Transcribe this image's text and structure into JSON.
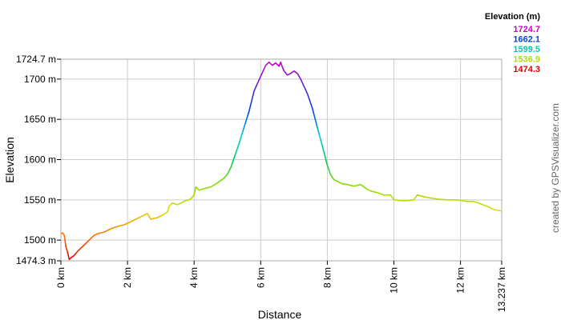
{
  "chart_data": {
    "type": "line",
    "xlabel": "Distance",
    "ylabel": "Elevation",
    "x_unit": "km",
    "y_unit": "m",
    "xlim": [
      0,
      13.237
    ],
    "ylim": [
      1474.3,
      1724.7
    ],
    "x_ticks": [
      "0 km",
      "2 km",
      "4 km",
      "6 km",
      "8 km",
      "10 km",
      "12 km",
      "13.237 km"
    ],
    "x_tick_values": [
      0,
      2,
      4,
      6,
      8,
      10,
      12,
      13.237
    ],
    "y_ticks": [
      "1474.3 m",
      "1500 m",
      "1550 m",
      "1600 m",
      "1650 m",
      "1700 m",
      "1724.7 m"
    ],
    "y_tick_values": [
      1474.3,
      1500,
      1550,
      1600,
      1650,
      1700,
      1724.7
    ],
    "grid": true,
    "legend": {
      "title": "Elevation (m)",
      "position": "top-right",
      "entries": [
        {
          "label": "1724.7",
          "color": "#cc00cc"
        },
        {
          "label": "1662.1",
          "color": "#0044dd"
        },
        {
          "label": "1599.5",
          "color": "#00ccaa"
        },
        {
          "label": "1536.9",
          "color": "#aadd00"
        },
        {
          "label": "1474.3",
          "color": "#dd0000"
        }
      ]
    },
    "credit": "created by GPSVisualizer.com",
    "series": [
      {
        "x": [
          0,
          0.05,
          0.1,
          0.15,
          0.2,
          0.25,
          0.3,
          0.4,
          0.5,
          0.6,
          0.7,
          0.8,
          0.9,
          1.0,
          1.1,
          1.3,
          1.5,
          1.7,
          1.9,
          2.1,
          2.3,
          2.5,
          2.6,
          2.7,
          2.9,
          3.1,
          3.2,
          3.25,
          3.35,
          3.5,
          3.7,
          3.9,
          4.0,
          4.05,
          4.15,
          4.3,
          4.5,
          4.7,
          4.9,
          5.0,
          5.1,
          5.2,
          5.35,
          5.5,
          5.65,
          5.8,
          5.95,
          6.05,
          6.15,
          6.25,
          6.35,
          6.45,
          6.55,
          6.6,
          6.65,
          6.7,
          6.8,
          6.9,
          7.0,
          7.1,
          7.2,
          7.3,
          7.4,
          7.55,
          7.7,
          7.85,
          8.0,
          8.1,
          8.2,
          8.3,
          8.45,
          8.6,
          8.8,
          9.0,
          9.1,
          9.2,
          9.3,
          9.5,
          9.7,
          9.9,
          10.0,
          10.2,
          10.4,
          10.6,
          10.7,
          10.8,
          11.0,
          11.3,
          11.6,
          11.9,
          12.2,
          12.4,
          12.6,
          12.8,
          13.0,
          13.237
        ],
        "y": [
          1508,
          1509,
          1506,
          1492,
          1485,
          1476,
          1478,
          1481,
          1486,
          1490,
          1494,
          1498,
          1502,
          1506,
          1508,
          1510,
          1514,
          1517,
          1519,
          1523,
          1527,
          1531,
          1533,
          1526,
          1528,
          1532,
          1535,
          1542,
          1546,
          1544,
          1548,
          1551,
          1556,
          1566,
          1562,
          1564,
          1566,
          1571,
          1577,
          1582,
          1590,
          1602,
          1620,
          1640,
          1660,
          1685,
          1699,
          1708,
          1717,
          1721,
          1717,
          1720,
          1716,
          1721,
          1715,
          1710,
          1705,
          1707,
          1710,
          1707,
          1700,
          1691,
          1682,
          1664,
          1640,
          1617,
          1593,
          1581,
          1575,
          1573,
          1570,
          1569,
          1567,
          1569,
          1566,
          1563,
          1561,
          1559,
          1556,
          1556,
          1550,
          1549,
          1549,
          1550,
          1556,
          1555,
          1553,
          1551,
          1550,
          1550,
          1548,
          1548,
          1545,
          1542,
          1538,
          1536
        ]
      }
    ]
  }
}
